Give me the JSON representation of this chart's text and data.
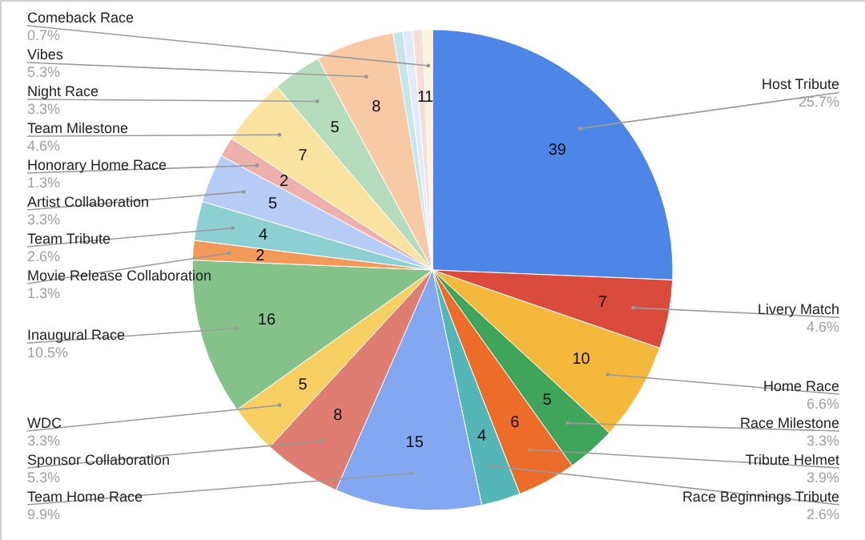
{
  "chart_data": {
    "type": "pie",
    "categories": [
      "Host Tribute",
      "Livery Match",
      "Home Race",
      "Race Milestone",
      "Tribute Helmet",
      "Race Beginnings Tribute",
      "Team Home Race",
      "Sponsor Collaboration",
      "WDC",
      "Inaugural Race",
      "Movie Release Collaboration",
      "Team Tribute",
      "Artist Collaboration",
      "Honorary Home Race",
      "Team Milestone",
      "Night Race",
      "Vibes",
      null,
      null,
      null,
      "Comeback Race"
    ],
    "values": [
      39,
      7,
      10,
      5,
      6,
      4,
      15,
      8,
      5,
      16,
      2,
      4,
      5,
      2,
      7,
      5,
      8,
      1,
      1,
      1,
      1
    ],
    "value_labels": [
      "39",
      "7",
      "10",
      "5",
      "6",
      "4",
      "15",
      "8",
      "5",
      "16",
      "2",
      "4",
      "5",
      "2",
      "7",
      "5",
      "8",
      null,
      null,
      "1",
      "1"
    ],
    "colors": [
      "#4e86e8",
      "#db4b3c",
      "#f4b83c",
      "#3ea55a",
      "#ee6c2a",
      "#55b6b8",
      "#83a7f0",
      "#e07d72",
      "#f7cf63",
      "#85c28a",
      "#f29a5a",
      "#8dd0d3",
      "#b7cdf6",
      "#eeb0ab",
      "#fae3a0",
      "#b5dcbc",
      "#f7c9a4",
      "#c5e6ea",
      "#e3ebfa",
      "#f8dedb",
      "#fdf3d6"
    ],
    "annotations": [
      "25.7%",
      "4.6%",
      "6.6%",
      "3.3%",
      "3.9%",
      "2.6%",
      "9.9%",
      "5.3%",
      "3.3%",
      "10.5%",
      "1.3%",
      "2.6%",
      "3.3%",
      "1.3%",
      "4.6%",
      "3.3%",
      "5.3%",
      "0.7%"
    ]
  }
}
